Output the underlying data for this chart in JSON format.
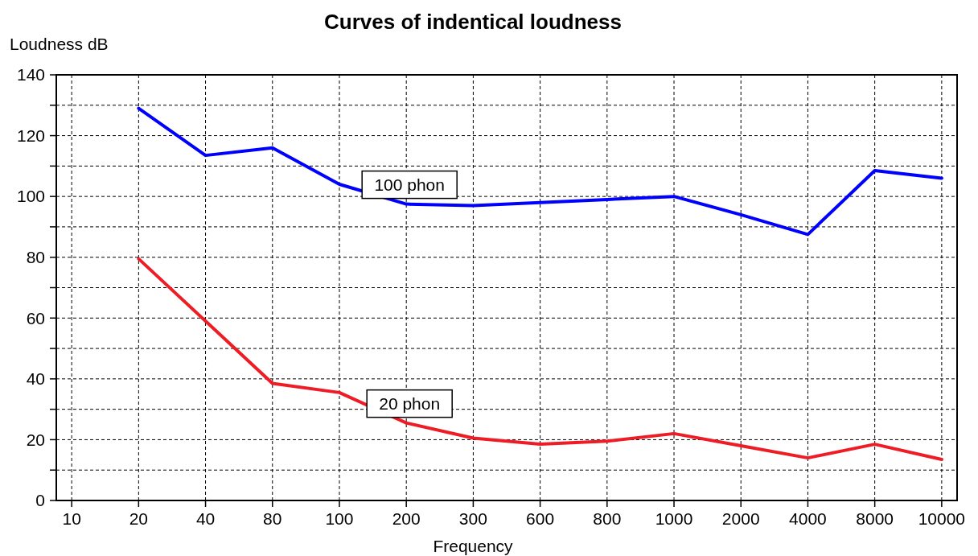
{
  "chart_data": {
    "type": "line",
    "title": "Curves of indentical loudness",
    "xlabel": "Frequency",
    "ylabel": "Loudness dB",
    "categories": [
      "10",
      "20",
      "40",
      "80",
      "100",
      "200",
      "300",
      "600",
      "800",
      "1000",
      "2000",
      "4000",
      "8000",
      "10000"
    ],
    "series": [
      {
        "name": "100 phon",
        "color": "#0000ff",
        "values": [
          null,
          129,
          113.5,
          116,
          104,
          97.5,
          97,
          98,
          99,
          100,
          94,
          87.5,
          108.5,
          106
        ]
      },
      {
        "name": "20 phon",
        "color": "#ee1c25",
        "values": [
          null,
          79.5,
          59,
          38.5,
          35.5,
          25.5,
          20.5,
          18.5,
          19.5,
          22,
          18,
          14,
          18.5,
          13.5
        ]
      }
    ],
    "ylim": [
      0,
      140
    ],
    "yticks": [
      0,
      {
        "value": 10,
        "label": null
      },
      20,
      {
        "value": 30,
        "label": null
      },
      40,
      {
        "value": 50,
        "label": null
      },
      60,
      {
        "value": 70,
        "label": null
      },
      80,
      {
        "value": 90,
        "label": null
      },
      100,
      {
        "value": 110,
        "label": null
      },
      120,
      {
        "value": 130,
        "label": null
      },
      140
    ],
    "grid": true,
    "marker": "none",
    "line_style": "solid"
  }
}
